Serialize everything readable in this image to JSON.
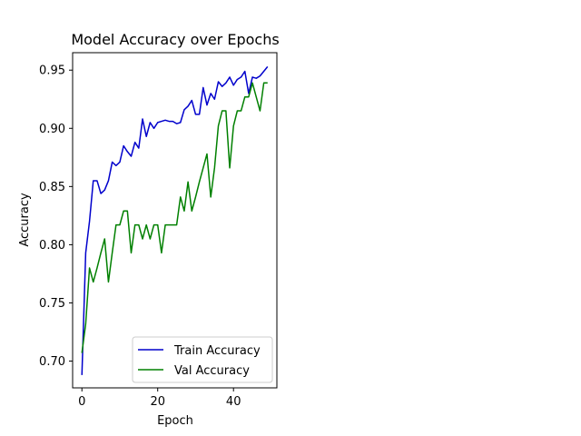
{
  "chart_data": {
    "type": "line",
    "title": "Model Accuracy over Epochs",
    "xlabel": "Epoch",
    "ylabel": "Accuracy",
    "xlim": [
      -2.45,
      51.45
    ],
    "ylim": [
      0.677,
      0.965
    ],
    "xticks": [
      0,
      20,
      40
    ],
    "yticks": [
      0.7,
      0.75,
      0.8,
      0.85,
      0.9,
      0.95
    ],
    "ytick_labels": [
      "0.70",
      "0.75",
      "0.80",
      "0.85",
      "0.90",
      "0.95"
    ],
    "grid": false,
    "legend_position": "lower right",
    "x": [
      0,
      1,
      2,
      3,
      4,
      5,
      6,
      7,
      8,
      9,
      10,
      11,
      12,
      13,
      14,
      15,
      16,
      17,
      18,
      19,
      20,
      21,
      22,
      23,
      24,
      25,
      26,
      27,
      28,
      29,
      30,
      31,
      32,
      33,
      34,
      35,
      36,
      37,
      38,
      39,
      40,
      41,
      42,
      43,
      44,
      45,
      46,
      47,
      48,
      49
    ],
    "series": [
      {
        "name": "Train Accuracy",
        "color": "#0000cc",
        "values": [
          0.688,
          0.793,
          0.82,
          0.855,
          0.855,
          0.844,
          0.847,
          0.855,
          0.871,
          0.868,
          0.871,
          0.885,
          0.88,
          0.876,
          0.888,
          0.883,
          0.908,
          0.893,
          0.905,
          0.9,
          0.905,
          0.906,
          0.907,
          0.906,
          0.906,
          0.904,
          0.905,
          0.916,
          0.919,
          0.924,
          0.912,
          0.912,
          0.935,
          0.92,
          0.93,
          0.925,
          0.94,
          0.936,
          0.939,
          0.944,
          0.937,
          0.942,
          0.944,
          0.949,
          0.93,
          0.944,
          0.943,
          0.945,
          0.949,
          0.953
        ]
      },
      {
        "name": "Val Accuracy",
        "color": "#008000",
        "values": [
          0.707,
          0.732,
          0.78,
          0.768,
          0.78,
          0.793,
          0.805,
          0.768,
          0.793,
          0.817,
          0.817,
          0.829,
          0.829,
          0.793,
          0.817,
          0.817,
          0.805,
          0.817,
          0.805,
          0.817,
          0.817,
          0.793,
          0.817,
          0.817,
          0.817,
          0.817,
          0.841,
          0.829,
          0.854,
          0.829,
          0.841,
          0.854,
          0.866,
          0.878,
          0.841,
          0.866,
          0.902,
          0.915,
          0.915,
          0.866,
          0.902,
          0.915,
          0.915,
          0.927,
          0.927,
          0.939,
          0.927,
          0.915,
          0.939,
          0.939
        ]
      }
    ]
  }
}
